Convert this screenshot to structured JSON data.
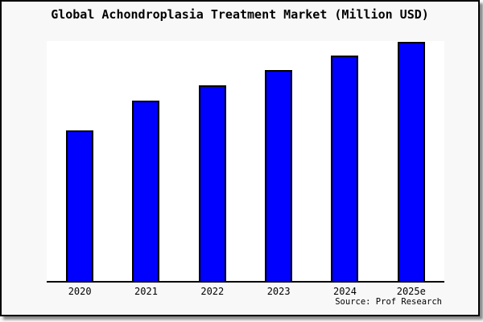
{
  "chart_data": {
    "type": "bar",
    "title": "Global Achondroplasia Treatment Market (Million USD)",
    "categories": [
      "2020",
      "2021",
      "2022",
      "2023",
      "2024",
      "2025e"
    ],
    "values": [
      62.8,
      75.1,
      81.5,
      87.9,
      93.9,
      99.7
    ],
    "values_note": "No numeric y-axis is shown in the chart; values are bar heights as percent of the plot-area height (tallest bar 2025e nearly touches the plot top). Relative ratio vs 2020: 1.00, 1.20, 1.30, 1.40, 1.50, 1.59.",
    "xlabel": "",
    "ylabel": "",
    "y_axis_labels_visible": false,
    "gridlines": false,
    "legend": false,
    "source_note": "Source: Prof Research",
    "bar_fill_color": "#0000ff",
    "bar_border_color": "#000000"
  },
  "colors": {
    "canvas_background": "#f8f8f8",
    "plot_background": "#ffffff",
    "frame_border": "#000000",
    "axis_line": "#000000",
    "text": "#000000"
  }
}
